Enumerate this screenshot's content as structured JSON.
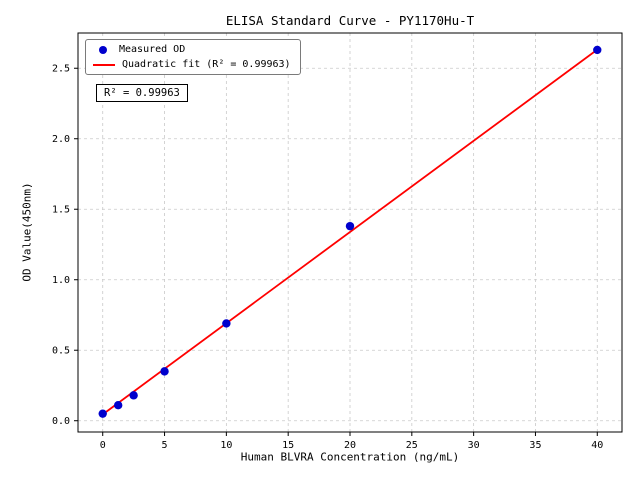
{
  "chart_data": {
    "type": "scatter",
    "title": "ELISA Standard Curve - PY1170Hu-T",
    "xlabel": "Human BLVRA Concentration (ng/mL)",
    "ylabel": "OD Value(450nm)",
    "xlim": [
      -2,
      42
    ],
    "ylim": [
      -0.08,
      2.75
    ],
    "xticks": [
      0,
      5,
      10,
      15,
      20,
      25,
      30,
      35,
      40
    ],
    "xtick_labels": [
      "0",
      "5",
      "10",
      "15",
      "20",
      "25",
      "30",
      "35",
      "40"
    ],
    "yticks": [
      0,
      0.5,
      1.0,
      1.5,
      2.0,
      2.5
    ],
    "ytick_labels": [
      "0.0",
      "0.5",
      "1.0",
      "1.5",
      "2.0",
      "2.5"
    ],
    "grid": true,
    "grid_style": "dashed",
    "colors": {
      "measured": "#0000cd",
      "fit": "#ff0000",
      "grid": "#c9c9c9",
      "axis": "#000000"
    },
    "series": [
      {
        "name": "Quadratic fit (R² = 0.99963)",
        "type": "line",
        "color": "#ff0000",
        "x": [
          0,
          40
        ],
        "y": [
          0.045,
          2.632
        ]
      },
      {
        "name": "Measured OD",
        "type": "scatter",
        "color": "#0000cd",
        "x": [
          0,
          1.25,
          2.5,
          5,
          10,
          20,
          40
        ],
        "y": [
          0.05,
          0.11,
          0.18,
          0.35,
          0.69,
          1.38,
          2.63
        ]
      }
    ],
    "legend": {
      "position": "upper left",
      "entries": [
        "Measured OD",
        "Quadratic fit (R² = 0.99963)"
      ]
    },
    "annotation": "R² = 0.99963"
  }
}
